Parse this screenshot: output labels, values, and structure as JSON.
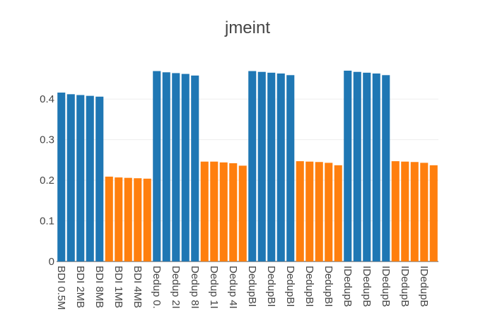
{
  "chart_data": {
    "type": "bar",
    "title": "jmeint",
    "xlabel": "",
    "ylabel": "",
    "ylim": [
      0,
      0.47
    ],
    "yticks": [
      "0",
      "0.1",
      "0.2",
      "0.3",
      "0.4"
    ],
    "ytick_values": [
      0,
      0.1,
      0.2,
      0.3,
      0.4
    ],
    "grid": true,
    "legend": "none",
    "colors": {
      "blue": "#1f77b4",
      "orange": "#ff7f0e"
    },
    "categories": [
      "BDI 0.5M",
      "",
      "BDI 2MB",
      "",
      "BDI 8MB",
      "",
      "BDI 1MB",
      "",
      "BDI 4MB",
      "",
      "Dedup 0.",
      "",
      "Dedup 2I",
      "",
      "Dedup 8I",
      "",
      "Dedup 1I",
      "",
      "Dedup 4I",
      "",
      "DedupBI",
      "",
      "DedupBI",
      "",
      "DedupBI",
      "",
      "DedupBI",
      "",
      "DedupBI",
      "",
      "IDedupB",
      "",
      "IDedupB",
      "",
      "IDedupB",
      "",
      "IDedupB",
      "",
      "IDedupB",
      ""
    ],
    "values": [
      0.416,
      0.412,
      0.41,
      0.408,
      0.406,
      0.209,
      0.207,
      0.206,
      0.205,
      0.204,
      0.469,
      0.466,
      0.464,
      0.462,
      0.458,
      0.246,
      0.246,
      0.244,
      0.242,
      0.236,
      0.469,
      0.467,
      0.465,
      0.463,
      0.459,
      0.247,
      0.246,
      0.245,
      0.243,
      0.237,
      0.47,
      0.467,
      0.465,
      0.463,
      0.459,
      0.247,
      0.246,
      0.245,
      0.243,
      0.237
    ],
    "bar_colors": [
      "blue",
      "blue",
      "blue",
      "blue",
      "blue",
      "orange",
      "orange",
      "orange",
      "orange",
      "orange",
      "blue",
      "blue",
      "blue",
      "blue",
      "blue",
      "orange",
      "orange",
      "orange",
      "orange",
      "orange",
      "blue",
      "blue",
      "blue",
      "blue",
      "blue",
      "orange",
      "orange",
      "orange",
      "orange",
      "orange",
      "blue",
      "blue",
      "blue",
      "blue",
      "blue",
      "orange",
      "orange",
      "orange",
      "orange",
      "orange"
    ]
  }
}
